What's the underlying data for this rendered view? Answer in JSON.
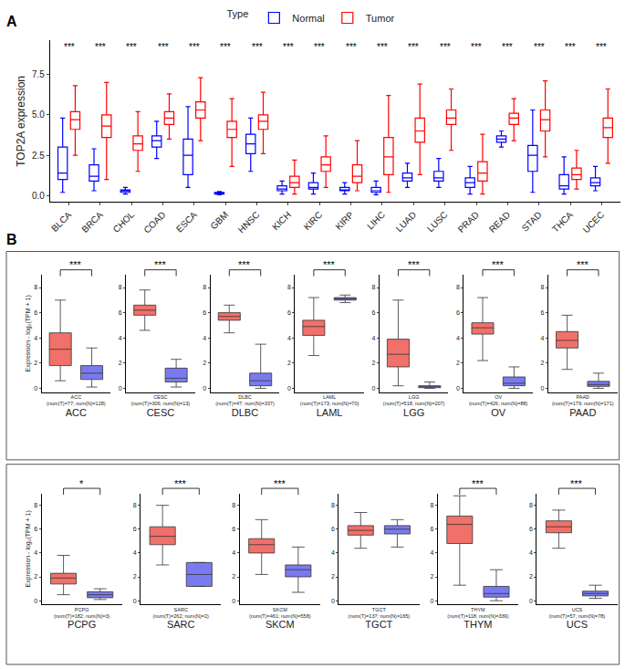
{
  "chart_data": [
    {
      "panel": "A",
      "type": "box",
      "ylabel": "TOP2A expression",
      "legend_title": "Type",
      "legend": "top",
      "ylim": [
        -0.4,
        9.6
      ],
      "yticks": [
        {
          "value": 0,
          "label": "0.0"
        },
        {
          "value": 2.5,
          "label": "2.5"
        },
        {
          "value": 5,
          "label": "5.0"
        },
        {
          "value": 7.5,
          "label": "7.5"
        }
      ],
      "categories": [
        "BLCA",
        "BRCA",
        "CHOL",
        "COAD",
        "ESCA",
        "GBM",
        "HNSC",
        "KICH",
        "KIRC",
        "KIRP",
        "LIHC",
        "LUAD",
        "LUSC",
        "PRAD",
        "READ",
        "STAD",
        "THCA",
        "UCEC"
      ],
      "significance": [
        "***",
        "***",
        "***",
        "***",
        "***",
        "***",
        "***",
        "***",
        "***",
        "***",
        "***",
        "***",
        "***",
        "***",
        "***",
        "***",
        "***",
        "***"
      ],
      "series": [
        {
          "name": "Normal",
          "color": "#0000ff",
          "lowerfence": [
            0.2,
            0.3,
            0.1,
            2.3,
            0.5,
            0.05,
            1.5,
            0.1,
            0.1,
            0.1,
            0.05,
            0.5,
            0.5,
            0.1,
            3.0,
            0.2,
            0.1,
            0.3
          ],
          "q1": [
            1.0,
            0.9,
            0.2,
            3.0,
            1.3,
            0.1,
            2.6,
            0.3,
            0.4,
            0.3,
            0.2,
            0.9,
            0.9,
            0.5,
            3.3,
            1.5,
            0.4,
            0.6
          ],
          "median": [
            1.4,
            1.2,
            0.3,
            3.4,
            2.5,
            0.15,
            3.2,
            0.4,
            0.5,
            0.35,
            0.3,
            1.1,
            1.1,
            0.8,
            3.5,
            2.5,
            0.6,
            0.8
          ],
          "q3": [
            3.0,
            1.9,
            0.35,
            3.7,
            3.5,
            0.2,
            3.8,
            0.6,
            0.8,
            0.5,
            0.5,
            1.4,
            1.5,
            1.1,
            3.7,
            3.1,
            1.3,
            1.1
          ],
          "upperfence": [
            4.8,
            2.9,
            0.5,
            4.6,
            5.5,
            0.25,
            4.8,
            0.9,
            1.4,
            0.8,
            0.9,
            2.0,
            2.3,
            1.8,
            4.0,
            5.3,
            2.4,
            1.8
          ]
        },
        {
          "name": "Tumor",
          "color": "#ff0000",
          "lowerfence": [
            2.5,
            1.0,
            1.5,
            3.5,
            3.4,
            1.8,
            2.6,
            0.1,
            0.5,
            0.3,
            0.2,
            1.3,
            2.8,
            0.1,
            3.4,
            2.4,
            0.4,
            2.0
          ],
          "q1": [
            4.1,
            3.6,
            2.8,
            4.4,
            4.8,
            3.6,
            4.1,
            0.5,
            1.5,
            0.8,
            1.3,
            3.3,
            4.4,
            0.9,
            4.4,
            4.0,
            1.0,
            3.6
          ],
          "median": [
            4.7,
            4.3,
            3.2,
            4.8,
            5.3,
            4.1,
            4.6,
            0.8,
            1.9,
            1.2,
            2.4,
            4.0,
            4.8,
            1.4,
            4.8,
            4.7,
            1.3,
            4.2
          ],
          "q3": [
            5.2,
            5.0,
            3.7,
            5.2,
            5.8,
            4.6,
            5.0,
            1.2,
            2.4,
            1.9,
            3.6,
            4.8,
            5.3,
            2.1,
            5.1,
            5.3,
            1.7,
            4.8
          ],
          "upperfence": [
            6.8,
            7.0,
            5.2,
            6.3,
            7.3,
            6.0,
            6.4,
            2.2,
            3.7,
            3.4,
            6.2,
            6.9,
            6.6,
            3.8,
            6.0,
            7.1,
            2.8,
            6.6
          ]
        }
      ]
    },
    {
      "panel": "B",
      "type": "box",
      "ylabel": "Expression - log₂(TPM + 1)",
      "ylim": [
        -0.3,
        9
      ],
      "yticks": [
        0,
        2,
        4,
        6,
        8
      ],
      "colors": [
        "#f0706a",
        "#7a7af0"
      ],
      "rows": [
        [
          {
            "title": "ACC",
            "label": "ACC",
            "note": "(num(T)=77; num(N)=128)",
            "significance": "***",
            "values": [
              [
                0.6,
                1.8,
                3.1,
                4.4,
                7.0
              ],
              [
                0.1,
                0.7,
                1.2,
                1.8,
                3.2
              ]
            ]
          },
          {
            "title": "CESC",
            "label": "CESC",
            "note": "(num(T)=306; num(N)=13)",
            "significance": "***",
            "values": [
              [
                4.6,
                5.8,
                6.2,
                6.6,
                7.8
              ],
              [
                0.1,
                0.5,
                0.8,
                1.6,
                2.3
              ]
            ]
          },
          {
            "title": "DLBC",
            "label": "DLBC",
            "note": "(num(T)=47; num(N)=337)",
            "significance": "***",
            "values": [
              [
                4.4,
                5.4,
                5.7,
                6.0,
                6.6
              ],
              [
                0.0,
                0.2,
                0.6,
                1.2,
                3.5
              ]
            ]
          },
          {
            "title": "LAML",
            "label": "LAML",
            "note": "(num(T)=173; num(N)=70)",
            "significance": "***",
            "values": [
              [
                2.6,
                4.2,
                4.9,
                5.4,
                7.2
              ],
              [
                6.8,
                7.0,
                7.1,
                7.2,
                7.4
              ]
            ]
          },
          {
            "title": "LGG",
            "label": "LGG",
            "note": "(num(T)=518; num(N)=207)",
            "significance": "***",
            "values": [
              [
                0.2,
                1.7,
                2.7,
                3.9,
                7.0
              ],
              [
                0.0,
                0.05,
                0.1,
                0.2,
                0.5
              ]
            ]
          },
          {
            "title": "OV",
            "label": "OV",
            "note": "(num(T)=426; num(N)=88)",
            "significance": "***",
            "values": [
              [
                2.2,
                4.3,
                4.8,
                5.2,
                7.2
              ],
              [
                0.0,
                0.2,
                0.4,
                0.9,
                1.7
              ]
            ]
          },
          {
            "title": "PAAD",
            "label": "PAAD",
            "note": "(num(T)=179; num(N)=171)",
            "significance": "***",
            "values": [
              [
                1.5,
                3.2,
                3.8,
                4.5,
                5.8
              ],
              [
                0.0,
                0.15,
                0.3,
                0.55,
                1.2
              ]
            ]
          }
        ],
        [
          {
            "title": "PCPG",
            "label": "PCPG",
            "note": "(num(T)=182; num(N)=3)",
            "significance": "*",
            "values": [
              [
                0.5,
                1.4,
                1.9,
                2.3,
                3.8
              ],
              [
                0.1,
                0.25,
                0.5,
                0.75,
                1.0
              ]
            ]
          },
          {
            "title": "SARC",
            "label": "SARC",
            "note": "(num(T)=262; num(N)=2)",
            "significance": "***",
            "values": [
              [
                3.0,
                4.7,
                5.4,
                6.2,
                8.0
              ],
              [
                1.2,
                1.2,
                2.2,
                3.2,
                3.2
              ]
            ]
          },
          {
            "title": "SKCM",
            "label": "SKCM",
            "note": "(num(T)=461; num(N)=558)",
            "significance": "***",
            "values": [
              [
                2.2,
                4.0,
                4.7,
                5.2,
                6.8
              ],
              [
                0.7,
                2.0,
                2.6,
                3.0,
                4.5
              ]
            ]
          },
          {
            "title": "TGCT",
            "label": "TGCT",
            "note": "(num(T)=137; num(N)=165)",
            "values": [
              [
                4.4,
                5.5,
                5.9,
                6.3,
                7.4
              ],
              [
                4.5,
                5.6,
                6.0,
                6.3,
                6.8
              ]
            ]
          },
          {
            "title": "THYM",
            "label": "THYM",
            "note": "(num(T)=118; num(N)=339)",
            "significance": "***",
            "values": [
              [
                1.3,
                4.8,
                6.4,
                7.1,
                8.8
              ],
              [
                0.0,
                0.3,
                0.6,
                1.2,
                2.6
              ]
            ]
          },
          {
            "title": "UCS",
            "label": "UCS",
            "note": "(num(T)=57; num(N)=78)",
            "significance": "***",
            "values": [
              [
                4.4,
                5.7,
                6.2,
                6.7,
                7.6
              ],
              [
                0.2,
                0.4,
                0.6,
                0.8,
                1.3
              ]
            ]
          }
        ]
      ]
    }
  ]
}
